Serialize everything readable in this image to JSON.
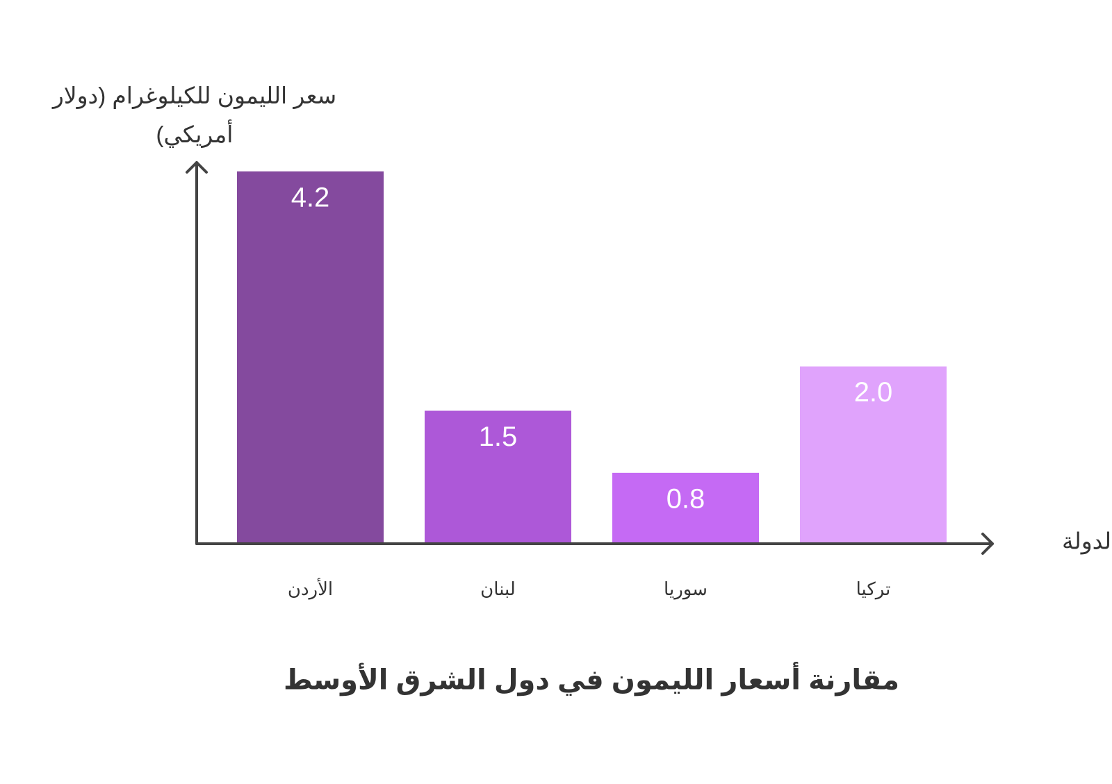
{
  "chart_data": {
    "type": "bar",
    "title": "مقارنة أسعار الليمون في دول الشرق الأوسط",
    "x_label": "الدولة",
    "y_label": "سعر الليمون للكيلوغرام (دولار أمريكي)",
    "categories": [
      "الأردن",
      "لبنان",
      "سوريا",
      "تركيا"
    ],
    "values": [
      4.2,
      1.5,
      0.8,
      2.0
    ],
    "value_labels": [
      "4.2",
      "1.5",
      "0.8",
      "2.0"
    ],
    "colors": [
      "#844a9e",
      "#ad58d8",
      "#c56af4",
      "#e0a3fc"
    ],
    "ylim": [
      0,
      4.3
    ]
  }
}
